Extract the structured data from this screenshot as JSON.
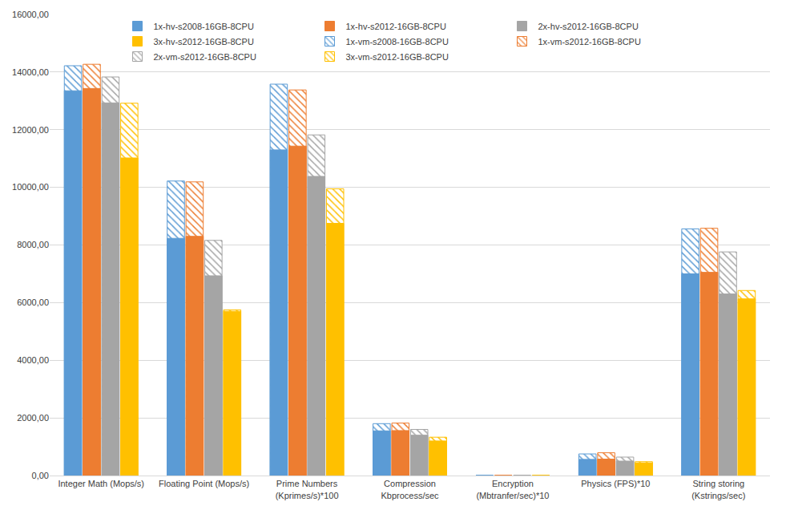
{
  "chart_data": {
    "type": "bar",
    "categories": [
      "Integer Math (Mops/s)",
      "Floating Point (Mops/s)",
      "Prime Numbers (Kprimes/s)*100",
      "Compression Kbprocess/sec",
      "Encryption (Mbtranfer/sec)*10",
      "Physics (FPS)*10",
      "String storing (Kstrings/sec)"
    ],
    "series": [
      {
        "name": "1x-vm-s2008-16GB-8CPU",
        "color": "#5b9bd5",
        "marker": "hatched",
        "values": [
          14220,
          10220,
          13580,
          1800,
          0,
          750,
          8560
        ]
      },
      {
        "name": "1x-vm-s2012-16GB-8CPU",
        "color": "#ed7d31",
        "marker": "hatched",
        "values": [
          14270,
          10190,
          13380,
          1820,
          0,
          790,
          8580
        ]
      },
      {
        "name": "2x-vm-s2012-16GB-8CPU",
        "color": "#a5a5a5",
        "marker": "hatched",
        "values": [
          13830,
          8160,
          11820,
          1600,
          0,
          640,
          7760
        ]
      },
      {
        "name": "3x-vm-s2012-16GB-8CPU",
        "color": "#ffc000",
        "marker": "hatched",
        "values": [
          12920,
          5750,
          9950,
          1330,
          0,
          480,
          6420
        ]
      },
      {
        "name": "1x-hv-s2008-16GB-8CPU",
        "color": "#5b9bd5",
        "marker": "solid",
        "values": [
          13350,
          8230,
          11300,
          1550,
          0,
          560,
          7000
        ]
      },
      {
        "name": "1x-hv-s2012-16GB-8CPU",
        "color": "#ed7d31",
        "marker": "solid",
        "values": [
          13430,
          8300,
          11430,
          1560,
          0,
          570,
          7050
        ]
      },
      {
        "name": "2x-hv-s2012-16GB-8CPU",
        "color": "#a5a5a5",
        "marker": "solid",
        "values": [
          12930,
          6930,
          10380,
          1400,
          0,
          500,
          6300
        ]
      },
      {
        "name": "3x-hv-s2012-16GB-8CPU",
        "color": "#ffc000",
        "marker": "solid",
        "values": [
          11020,
          5700,
          8750,
          1200,
          0,
          440,
          6130
        ]
      }
    ],
    "ylim": [
      0,
      16000
    ],
    "yticks": [
      {
        "value": 0,
        "label": "0,00"
      },
      {
        "value": 2000,
        "label": "2000,00"
      },
      {
        "value": 4000,
        "label": "4000,00"
      },
      {
        "value": 6000,
        "label": "6000,00"
      },
      {
        "value": 8000,
        "label": "8000,00"
      },
      {
        "value": 10000,
        "label": "10000,00"
      },
      {
        "value": 12000,
        "label": "12000,00"
      },
      {
        "value": 14000,
        "label": "14000,00"
      },
      {
        "value": 16000,
        "label": "16000,00"
      }
    ],
    "grid": true,
    "legend": "top"
  }
}
